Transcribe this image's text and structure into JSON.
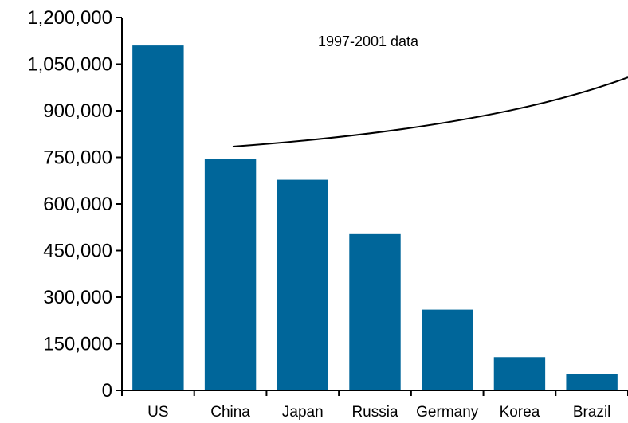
{
  "chart_data": {
    "type": "bar",
    "title": "",
    "xlabel": "",
    "ylabel": "",
    "categories": [
      "US",
      "China",
      "Japan",
      "Russia",
      "Germany",
      "Korea",
      "Brazil"
    ],
    "values": [
      1110000,
      745000,
      678000,
      503000,
      260000,
      107000,
      52000
    ],
    "ylim": [
      0,
      1200000
    ],
    "yticks": [
      0,
      150000,
      300000,
      450000,
      600000,
      750000,
      900000,
      1050000,
      1200000
    ],
    "ytick_labels": [
      "0",
      "150,000",
      "300,000",
      "450,000",
      "600,000",
      "750,000",
      "900,000",
      "1,050,000",
      "1,200,000"
    ],
    "grid": false,
    "legend": "none",
    "bar_color": "#00669a",
    "annotation": "1997-2001 data"
  }
}
